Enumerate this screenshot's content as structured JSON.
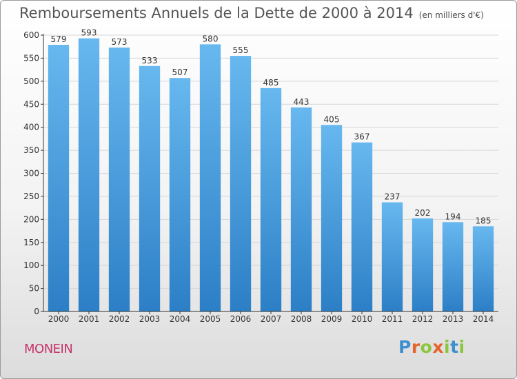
{
  "title": "Remboursements Annuels de la Dette de 2000 à 2014",
  "unit_note": "(en milliers d'€)",
  "location": "MONEIN",
  "logo": {
    "text": "Proxiti",
    "letter_colors": [
      "#3f8fd0",
      "#e7632b",
      "#8cc63f",
      "#e7632b",
      "#8cc63f",
      "#3f8fd0",
      "#8cc63f"
    ]
  },
  "colors": {
    "bar_top": "#67b8ef",
    "bar_bottom": "#2c7fc6",
    "title": "#555555",
    "location": "#c8336a",
    "grid": "#d6d6d6"
  },
  "chart_data": {
    "type": "bar",
    "title": "Remboursements Annuels de la Dette de 2000 à 2014",
    "ylabel": "",
    "xlabel": "",
    "ylim": [
      0,
      600
    ],
    "yticks": [
      0,
      50,
      100,
      150,
      200,
      250,
      300,
      350,
      400,
      450,
      500,
      550,
      600
    ],
    "grid": true,
    "categories": [
      "2000",
      "2001",
      "2002",
      "2003",
      "2004",
      "2005",
      "2006",
      "2007",
      "2008",
      "2009",
      "2010",
      "2011",
      "2012",
      "2013",
      "2014"
    ],
    "values": [
      579,
      593,
      573,
      533,
      507,
      580,
      555,
      485,
      443,
      405,
      367,
      237,
      202,
      194,
      185
    ]
  }
}
